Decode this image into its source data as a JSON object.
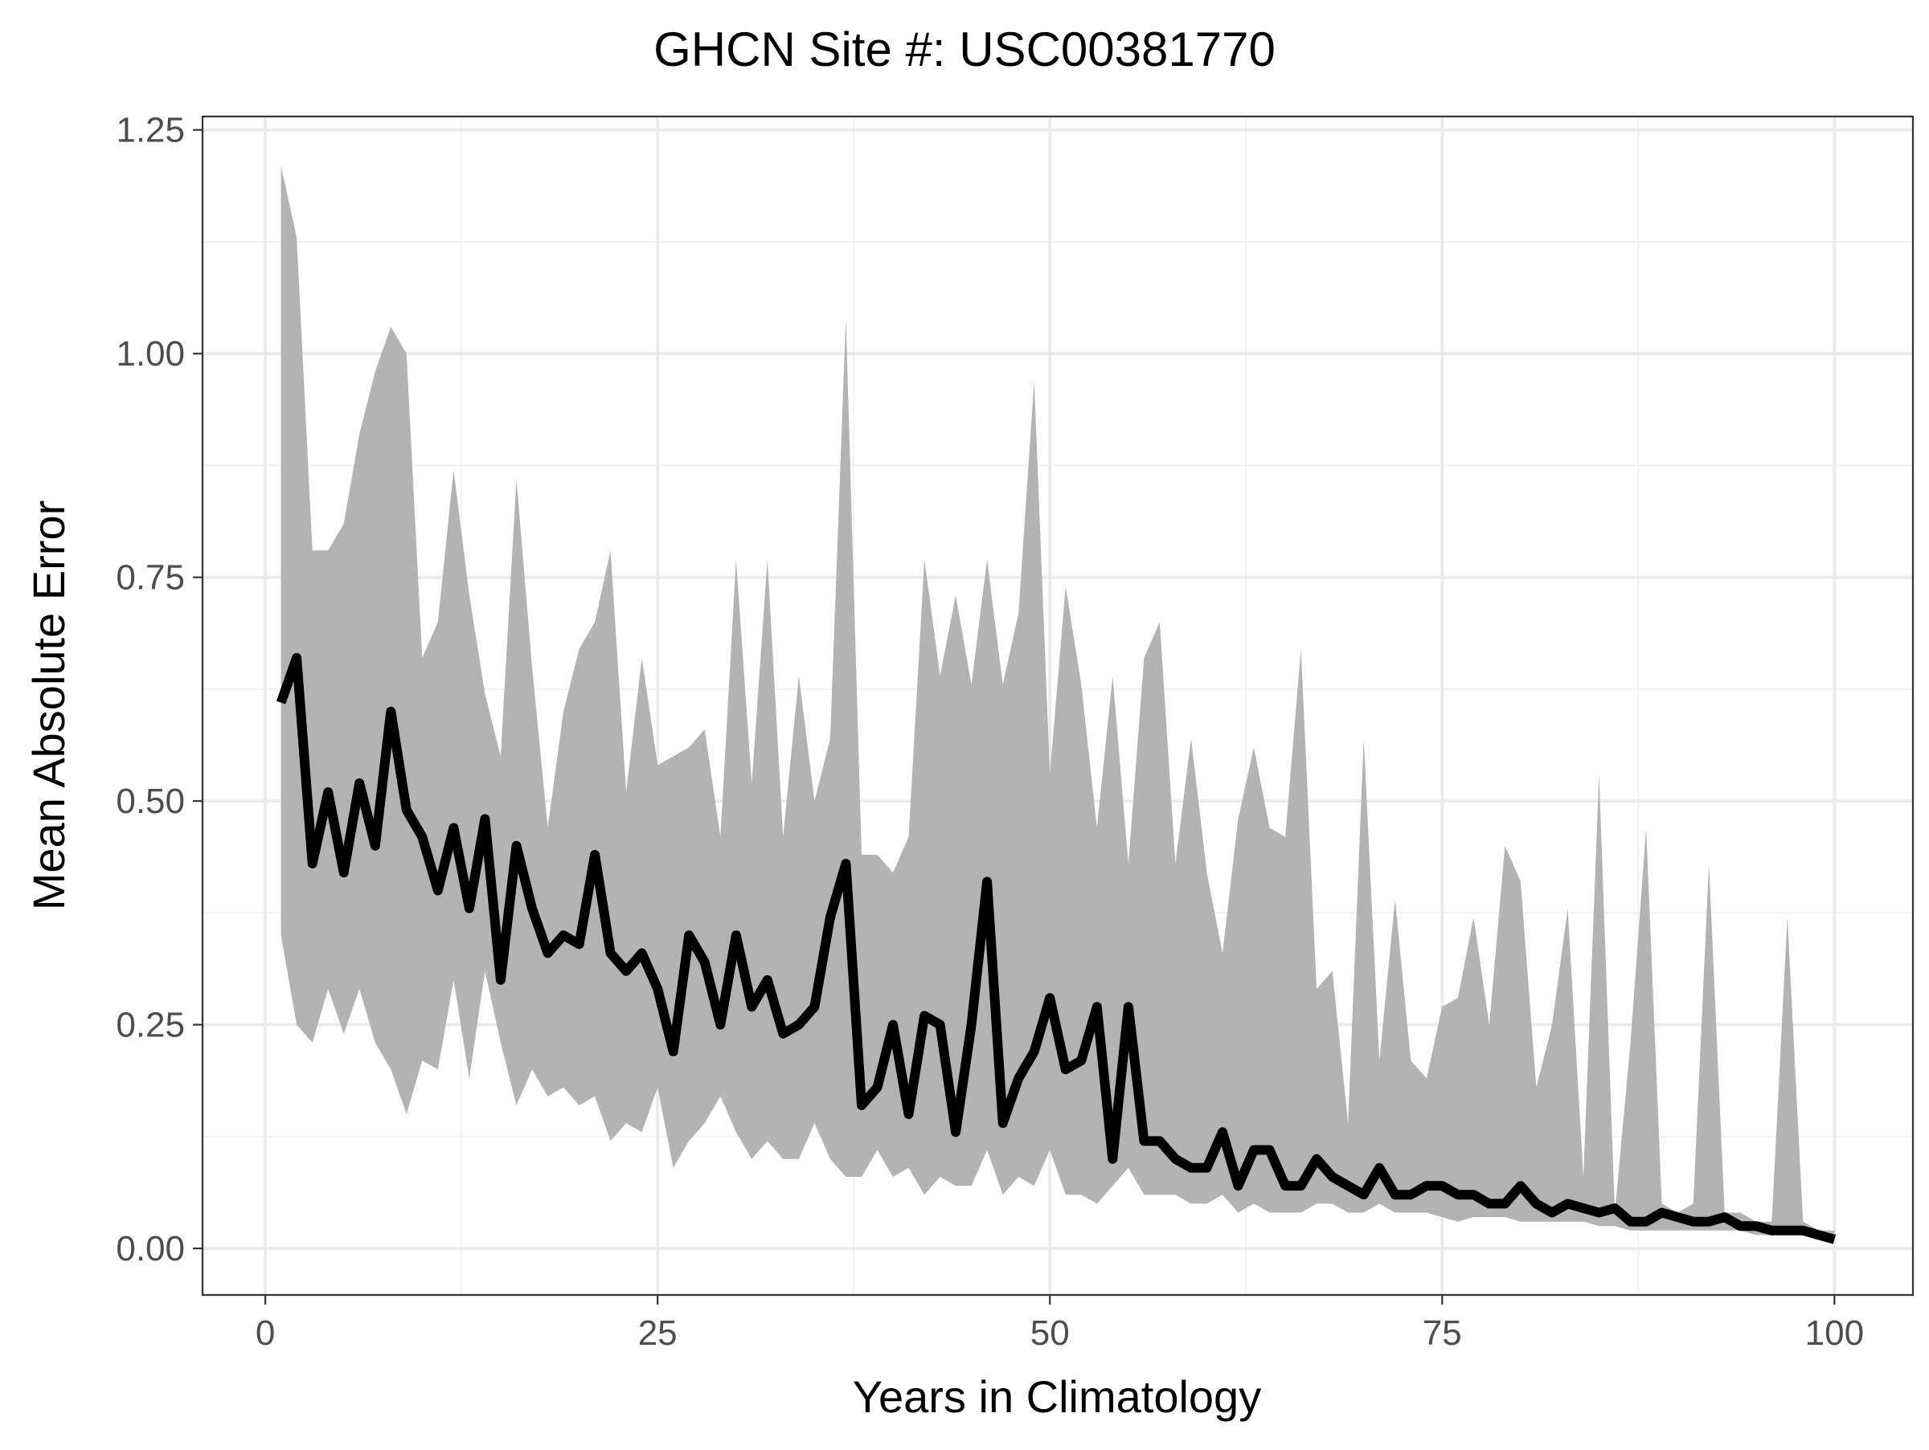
{
  "chart_data": {
    "type": "line",
    "title": "GHCN Site #: USC00381770",
    "xlabel": "Years in Climatology",
    "ylabel": "Mean Absolute Error",
    "xlim": [
      -4,
      105
    ],
    "ylim": [
      -0.052,
      1.265
    ],
    "x_ticks": [
      0,
      25,
      50,
      75,
      100
    ],
    "x_tick_labels": [
      "0",
      "25",
      "50",
      "75",
      "100"
    ],
    "y_ticks": [
      0,
      0.25,
      0.5,
      0.75,
      1.0,
      1.25
    ],
    "y_tick_labels": [
      "0.00",
      "0.25",
      "0.50",
      "0.75",
      "1.00",
      "1.25"
    ],
    "grid": true,
    "colors": {
      "line": "#000000",
      "ribbon": "#b3b3b3",
      "grid": "#ebebeb",
      "frame": "#333333"
    },
    "x": [
      1,
      2,
      3,
      4,
      5,
      6,
      7,
      8,
      9,
      10,
      11,
      12,
      13,
      14,
      15,
      16,
      17,
      18,
      19,
      20,
      21,
      22,
      23,
      24,
      25,
      26,
      27,
      28,
      29,
      30,
      31,
      32,
      33,
      34,
      35,
      36,
      37,
      38,
      39,
      40,
      41,
      42,
      43,
      44,
      45,
      46,
      47,
      48,
      49,
      50,
      51,
      52,
      53,
      54,
      55,
      56,
      57,
      58,
      59,
      60,
      61,
      62,
      63,
      64,
      65,
      66,
      67,
      68,
      69,
      70,
      71,
      72,
      73,
      74,
      75,
      76,
      77,
      78,
      79,
      80,
      81,
      82,
      83,
      84,
      85,
      86,
      87,
      88,
      89,
      90,
      91,
      92,
      93,
      94,
      95,
      96,
      97,
      98,
      99,
      100
    ],
    "series": [
      {
        "values": [
          0.61,
          0.66,
          0.43,
          0.51,
          0.42,
          0.52,
          0.45,
          0.6,
          0.49,
          0.46,
          0.4,
          0.47,
          0.38,
          0.48,
          0.3,
          0.45,
          0.38,
          0.33,
          0.35,
          0.34,
          0.44,
          0.33,
          0.31,
          0.33,
          0.29,
          0.22,
          0.35,
          0.32,
          0.25,
          0.35,
          0.27,
          0.3,
          0.24,
          0.25,
          0.27,
          0.37,
          0.43,
          0.16,
          0.18,
          0.25,
          0.15,
          0.26,
          0.25,
          0.13,
          0.25,
          0.41,
          0.14,
          0.19,
          0.22,
          0.28,
          0.2,
          0.21,
          0.27,
          0.1,
          0.27,
          0.12,
          0.12,
          0.1,
          0.09,
          0.09,
          0.13,
          0.07,
          0.11,
          0.11,
          0.07,
          0.07,
          0.1,
          0.08,
          0.07,
          0.06,
          0.09,
          0.06,
          0.06,
          0.07,
          0.07,
          0.06,
          0.06,
          0.05,
          0.05,
          0.07,
          0.05,
          0.04,
          0.05,
          0.045,
          0.04,
          0.045,
          0.03,
          0.03,
          0.04,
          0.035,
          0.03,
          0.03,
          0.035,
          0.025,
          0.025,
          0.02,
          0.02,
          0.02,
          0.015,
          0.01
        ]
      }
    ],
    "ribbon": {
      "upper": [
        1.21,
        1.13,
        0.78,
        0.78,
        0.81,
        0.91,
        0.98,
        1.03,
        1.0,
        0.66,
        0.7,
        0.87,
        0.73,
        0.62,
        0.55,
        0.86,
        0.65,
        0.47,
        0.6,
        0.67,
        0.7,
        0.78,
        0.51,
        0.66,
        0.54,
        0.55,
        0.56,
        0.58,
        0.46,
        0.77,
        0.52,
        0.77,
        0.46,
        0.64,
        0.5,
        0.57,
        1.04,
        0.44,
        0.44,
        0.42,
        0.46,
        0.77,
        0.64,
        0.73,
        0.63,
        0.77,
        0.63,
        0.71,
        0.97,
        0.53,
        0.74,
        0.63,
        0.47,
        0.64,
        0.43,
        0.66,
        0.7,
        0.43,
        0.57,
        0.42,
        0.33,
        0.48,
        0.56,
        0.47,
        0.46,
        0.67,
        0.29,
        0.31,
        0.14,
        0.57,
        0.21,
        0.39,
        0.21,
        0.19,
        0.27,
        0.28,
        0.37,
        0.25,
        0.45,
        0.41,
        0.18,
        0.25,
        0.38,
        0.08,
        0.53,
        0.04,
        0.23,
        0.47,
        0.05,
        0.04,
        0.05,
        0.43,
        0.04,
        0.04,
        0.03,
        0.03,
        0.37,
        0.03,
        0.02,
        0.02
      ],
      "lower": [
        0.35,
        0.25,
        0.23,
        0.29,
        0.24,
        0.29,
        0.23,
        0.2,
        0.15,
        0.21,
        0.2,
        0.3,
        0.19,
        0.31,
        0.23,
        0.16,
        0.2,
        0.17,
        0.18,
        0.16,
        0.17,
        0.12,
        0.14,
        0.13,
        0.18,
        0.09,
        0.12,
        0.14,
        0.17,
        0.13,
        0.1,
        0.12,
        0.1,
        0.1,
        0.14,
        0.1,
        0.08,
        0.08,
        0.11,
        0.08,
        0.09,
        0.06,
        0.08,
        0.07,
        0.07,
        0.11,
        0.06,
        0.08,
        0.07,
        0.11,
        0.06,
        0.06,
        0.05,
        0.07,
        0.09,
        0.06,
        0.06,
        0.06,
        0.05,
        0.05,
        0.06,
        0.04,
        0.05,
        0.04,
        0.04,
        0.04,
        0.05,
        0.05,
        0.04,
        0.04,
        0.05,
        0.04,
        0.04,
        0.04,
        0.035,
        0.03,
        0.035,
        0.035,
        0.035,
        0.03,
        0.03,
        0.03,
        0.03,
        0.03,
        0.025,
        0.025,
        0.02,
        0.02,
        0.02,
        0.02,
        0.02,
        0.02,
        0.02,
        0.02,
        0.015,
        0.015,
        0.015,
        0.015,
        0.01,
        0.01
      ]
    }
  }
}
